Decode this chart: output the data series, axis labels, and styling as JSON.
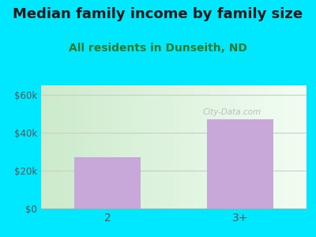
{
  "title": "Median family income by family size",
  "subtitle": "All residents in Dunseith, ND",
  "categories": [
    "2",
    "3+"
  ],
  "values": [
    27000,
    47000
  ],
  "bar_color": "#c8a8d8",
  "ylim": [
    0,
    65000
  ],
  "yticks": [
    0,
    20000,
    40000,
    60000
  ],
  "ytick_labels": [
    "$0",
    "$20k",
    "$40k",
    "$60k"
  ],
  "background_color": "#00e8ff",
  "title_color": "#1a1a1a",
  "subtitle_color": "#2d7a2d",
  "title_fontsize": 13,
  "subtitle_fontsize": 10,
  "watermark": "City-Data.com"
}
